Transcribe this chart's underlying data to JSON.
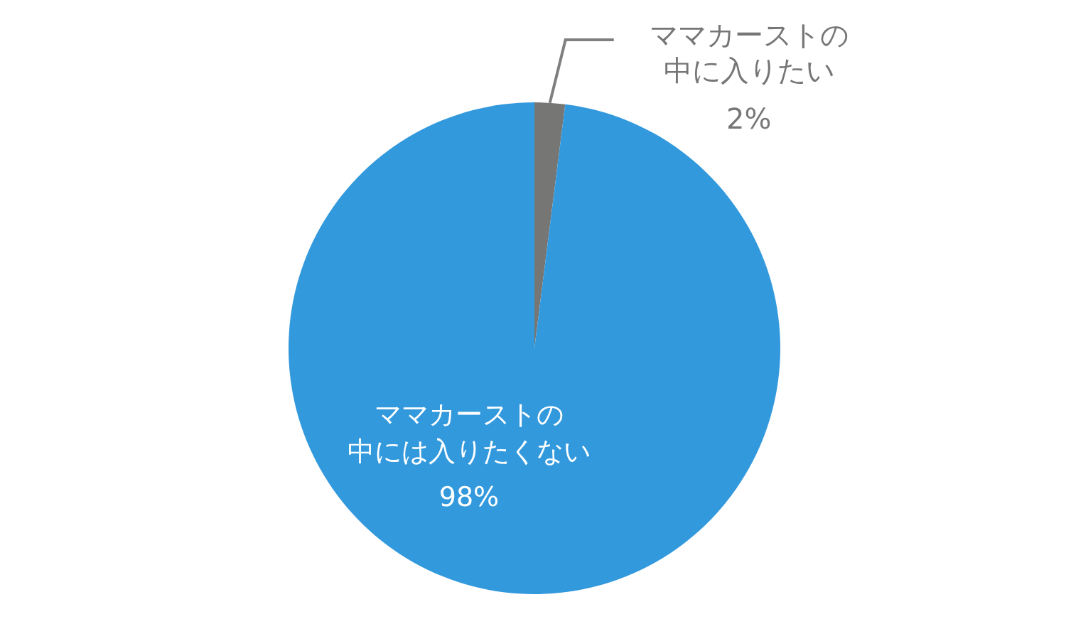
{
  "chart_data": {
    "type": "pie",
    "categories": [
      "ママカーストの中に入りたい",
      "ママカーストの中には入りたくない"
    ],
    "values": [
      2,
      98
    ],
    "value_labels": [
      "2%",
      "98%"
    ],
    "colors": [
      "#767674",
      "#3399dd"
    ]
  }
}
